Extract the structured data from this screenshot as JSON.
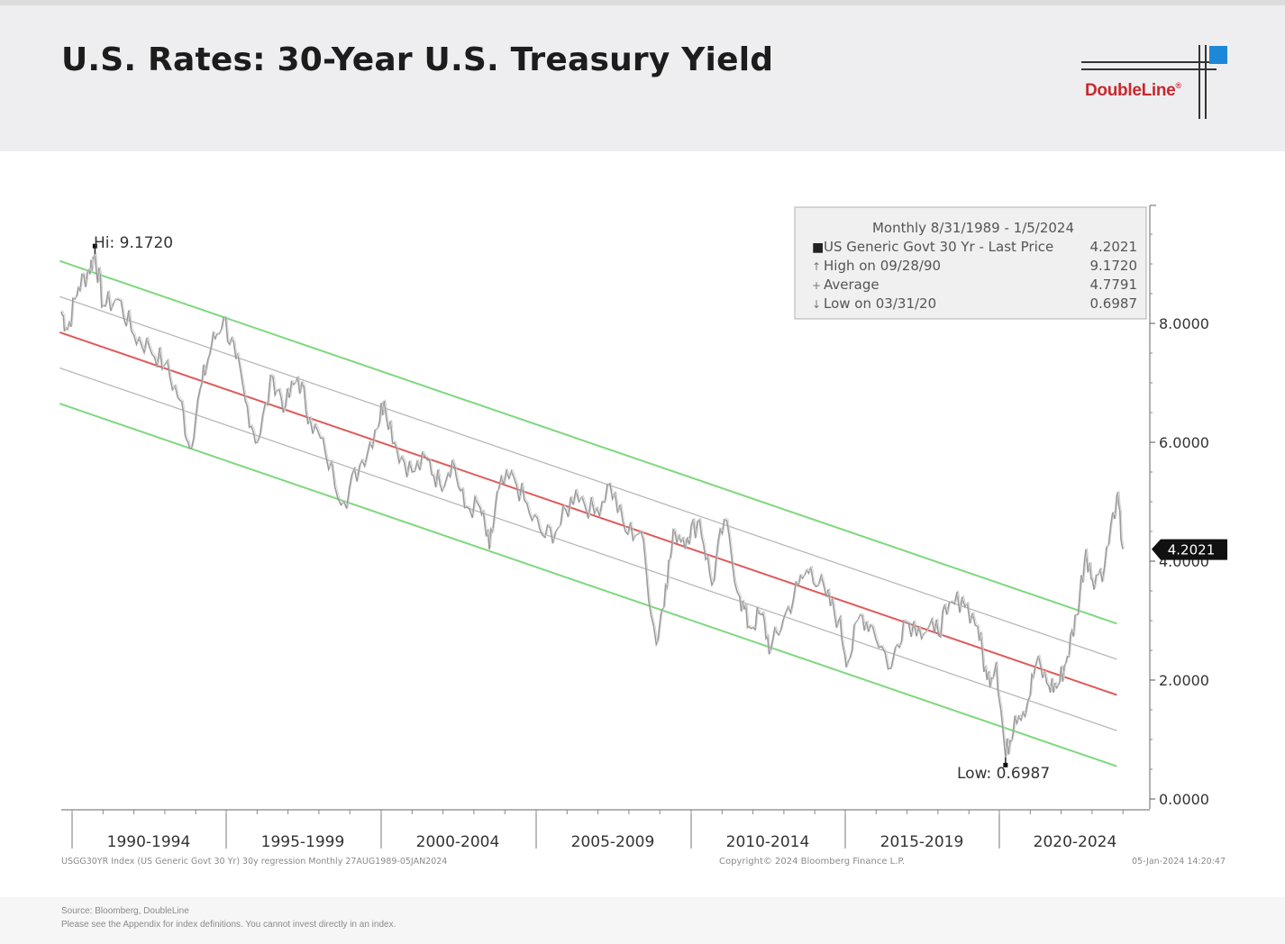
{
  "header": {
    "title": "U.S. Rates: 30-Year U.S. Treasury Yield",
    "logo_text": "DoubleLine",
    "logo_mark": "®",
    "logo_accent": "#1e88d8"
  },
  "legend": {
    "header": "Monthly 8/31/1989 - 1/5/2024",
    "rows": [
      {
        "marker": "■",
        "label": "US Generic Govt 30 Yr - Last Price",
        "value": "4.2021"
      },
      {
        "marker": "↑",
        "label": "High on 09/28/90",
        "value": "9.1720"
      },
      {
        "marker": "+",
        "label": "Average",
        "value": "4.7791"
      },
      {
        "marker": "↓",
        "label": "Low on 03/31/20",
        "value": "0.6987"
      }
    ]
  },
  "annotations": {
    "high_label": "Hi: 9.1720",
    "low_label": "Low: 0.6987",
    "last_price_badge": "4.2021"
  },
  "chart_footer": {
    "left": "USGG30YR Index (US Generic Govt 30 Yr) 30y regression Monthly 27AUG1989-05JAN2024",
    "center": "Copyright© 2024 Bloomberg Finance L.P.",
    "right": "05-Jan-2024 14:20:47"
  },
  "source": {
    "line1": "Source: Bloomberg, DoubleLine",
    "line2": "Please see the Appendix for index definitions. You cannot invest directly in an index."
  },
  "chart_data": {
    "type": "line",
    "x_unit": "year",
    "xlim": [
      1989.6,
      2024.3
    ],
    "ylim": [
      0,
      10
    ],
    "y_ticks": [
      "0.0000",
      "2.0000",
      "4.0000",
      "6.0000",
      "8.0000"
    ],
    "y_tick_values": [
      0,
      2,
      4,
      6,
      8
    ],
    "x_periods": [
      {
        "label": "1990-1994",
        "start": 1990,
        "end": 1995
      },
      {
        "label": "1995-1999",
        "start": 1995,
        "end": 2000
      },
      {
        "label": "2000-2004",
        "start": 2000,
        "end": 2005
      },
      {
        "label": "2005-2009",
        "start": 2005,
        "end": 2010
      },
      {
        "label": "2010-2014",
        "start": 2010,
        "end": 2015
      },
      {
        "label": "2015-2019",
        "start": 2015,
        "end": 2020
      },
      {
        "label": "2020-2024",
        "start": 2020,
        "end": 2024.5
      }
    ],
    "series": [
      {
        "values": [
          [
            1989.65,
            8.2
          ],
          [
            1989.85,
            7.9
          ],
          [
            1990.2,
            8.6
          ],
          [
            1990.55,
            8.9
          ],
          [
            1990.74,
            9.172
          ],
          [
            1991.0,
            8.3
          ],
          [
            1991.5,
            8.4
          ],
          [
            1992.0,
            7.8
          ],
          [
            1992.5,
            7.6
          ],
          [
            1993.0,
            7.3
          ],
          [
            1993.5,
            6.7
          ],
          [
            1993.8,
            5.9
          ],
          [
            1994.2,
            7.0
          ],
          [
            1994.5,
            7.6
          ],
          [
            1994.9,
            8.1
          ],
          [
            1995.3,
            7.4
          ],
          [
            1995.6,
            6.7
          ],
          [
            1996.0,
            6.0
          ],
          [
            1996.5,
            7.1
          ],
          [
            1996.9,
            6.6
          ],
          [
            1997.3,
            7.1
          ],
          [
            1997.7,
            6.4
          ],
          [
            1998.2,
            5.8
          ],
          [
            1998.8,
            5.0
          ],
          [
            1999.3,
            5.6
          ],
          [
            1999.8,
            6.2
          ],
          [
            2000.1,
            6.7
          ],
          [
            2000.5,
            5.9
          ],
          [
            2001.0,
            5.5
          ],
          [
            2001.5,
            5.7
          ],
          [
            2001.9,
            5.3
          ],
          [
            2002.3,
            5.7
          ],
          [
            2002.7,
            4.9
          ],
          [
            2003.2,
            4.9
          ],
          [
            2003.5,
            4.2
          ],
          [
            2003.8,
            5.2
          ],
          [
            2004.3,
            5.4
          ],
          [
            2004.8,
            4.8
          ],
          [
            2005.3,
            4.4
          ],
          [
            2005.8,
            4.6
          ],
          [
            2006.3,
            5.2
          ],
          [
            2006.9,
            4.8
          ],
          [
            2007.4,
            5.3
          ],
          [
            2007.9,
            4.5
          ],
          [
            2008.4,
            4.5
          ],
          [
            2008.9,
            2.6
          ],
          [
            2009.2,
            3.6
          ],
          [
            2009.5,
            4.5
          ],
          [
            2009.9,
            4.4
          ],
          [
            2010.3,
            4.7
          ],
          [
            2010.7,
            3.6
          ],
          [
            2011.1,
            4.7
          ],
          [
            2011.6,
            3.4
          ],
          [
            2011.9,
            2.9
          ],
          [
            2012.3,
            3.1
          ],
          [
            2012.6,
            2.5
          ],
          [
            2013.0,
            3.0
          ],
          [
            2013.5,
            3.6
          ],
          [
            2013.9,
            3.9
          ],
          [
            2014.4,
            3.4
          ],
          [
            2014.8,
            3.0
          ],
          [
            2015.1,
            2.3
          ],
          [
            2015.5,
            3.1
          ],
          [
            2015.9,
            2.9
          ],
          [
            2016.5,
            2.2
          ],
          [
            2016.9,
            3.0
          ],
          [
            2017.4,
            2.9
          ],
          [
            2017.9,
            2.8
          ],
          [
            2018.3,
            3.1
          ],
          [
            2018.8,
            3.4
          ],
          [
            2019.3,
            2.9
          ],
          [
            2019.6,
            2.0
          ],
          [
            2019.9,
            2.3
          ],
          [
            2020.2,
            0.6987
          ],
          [
            2020.5,
            1.4
          ],
          [
            2020.9,
            1.6
          ],
          [
            2021.2,
            2.3
          ],
          [
            2021.6,
            1.9
          ],
          [
            2021.9,
            1.9
          ],
          [
            2022.2,
            2.4
          ],
          [
            2022.5,
            3.1
          ],
          [
            2022.8,
            4.2
          ],
          [
            2023.0,
            3.7
          ],
          [
            2023.4,
            3.9
          ],
          [
            2023.8,
            5.1
          ],
          [
            2024.0,
            4.2021
          ]
        ]
      }
    ],
    "regression": {
      "mid": [
        [
          1989.6,
          7.85
        ],
        [
          2023.8,
          1.75
        ]
      ],
      "plus1": [
        [
          1989.6,
          8.45
        ],
        [
          2023.8,
          2.35
        ]
      ],
      "minus1": [
        [
          1989.6,
          7.25
        ],
        [
          2023.8,
          1.15
        ]
      ],
      "plus2": [
        [
          1989.6,
          9.05
        ],
        [
          2023.8,
          2.95
        ]
      ],
      "minus2": [
        [
          1989.6,
          6.65
        ],
        [
          2023.8,
          0.55
        ]
      ],
      "colors": {
        "mid": "#e05a5a",
        "inner": "#b8b8b8",
        "outer": "#7ed87e"
      }
    },
    "high": {
      "x": 1990.74,
      "y": 9.172
    },
    "low": {
      "x": 2020.2,
      "y": 0.6987
    },
    "last": {
      "x": 2024.0,
      "y": 4.2021
    }
  }
}
